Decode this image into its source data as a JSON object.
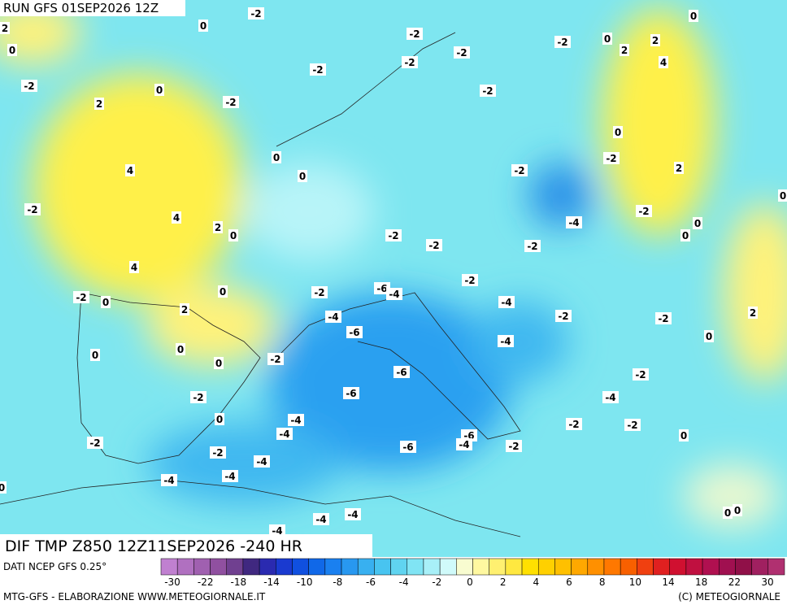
{
  "header": {
    "run": "RUN GFS 01SEP2026 12Z"
  },
  "map": {
    "title": "DIF TMP Z850 12Z11SEP2026 -240 HR",
    "labels": [
      "-2",
      "0",
      "2",
      "0",
      "-2",
      "-2",
      "-2",
      "0",
      "2",
      "0",
      "2",
      "-2",
      "4",
      "-2",
      "-2",
      "0",
      "2",
      "-2",
      "-2",
      "0",
      "0",
      "-2",
      "4",
      "0",
      "-2",
      "2",
      "0",
      "-2",
      "-2",
      "4",
      "2",
      "0",
      "-4",
      "0",
      "0",
      "-2",
      "-2",
      "-2",
      "4",
      "-2",
      "0",
      "-2",
      "-6",
      "-4",
      "-2",
      "0",
      "-4",
      "2",
      "-2",
      "-4",
      "-2",
      "2",
      "-6",
      "0",
      "0",
      "-4",
      "0",
      "0",
      "-2",
      "-6",
      "-2",
      "-6",
      "-2",
      "-4",
      "0",
      "-4",
      "-2",
      "-2",
      "-4",
      "-6",
      "0",
      "-4",
      "-2",
      "-2",
      "-6",
      "-2",
      "-4",
      "-4",
      "-4",
      "0",
      "-4",
      "-4",
      "-4",
      "0",
      "0"
    ]
  },
  "legend": {
    "source": "DATI NCEP GFS 0.25°",
    "colors": [
      "#c080d0",
      "#b070c0",
      "#a060b0",
      "#9050a0",
      "#704090",
      "#402880",
      "#2a2ab0",
      "#1a3ad0",
      "#1050e0",
      "#1068e8",
      "#1a80f0",
      "#2898f0",
      "#38b0f0",
      "#48c4f0",
      "#60d4f0",
      "#80e4f4",
      "#a8f0f8",
      "#d0fafa",
      "#f8fcd0",
      "#fff8a0",
      "#fff070",
      "#ffe840",
      "#ffe000",
      "#ffd000",
      "#ffc000",
      "#ffa800",
      "#ff9000",
      "#ff7800",
      "#f86000",
      "#f04010",
      "#e02020",
      "#d01030",
      "#c01040",
      "#b01050",
      "#a01050",
      "#901048",
      "#a02060",
      "#b03070"
    ],
    "ticks": [
      "-30",
      "-22",
      "-18",
      "-14",
      "-10",
      "-8",
      "-6",
      "-4",
      "-2",
      "0",
      "2",
      "4",
      "6",
      "8",
      "10",
      "14",
      "18",
      "22",
      "30"
    ]
  },
  "footer": {
    "left": "MTG-GFS - ELABORAZIONE WWW.METEOGIORNALE.IT",
    "right": "(C) METEOGIORNALE"
  }
}
